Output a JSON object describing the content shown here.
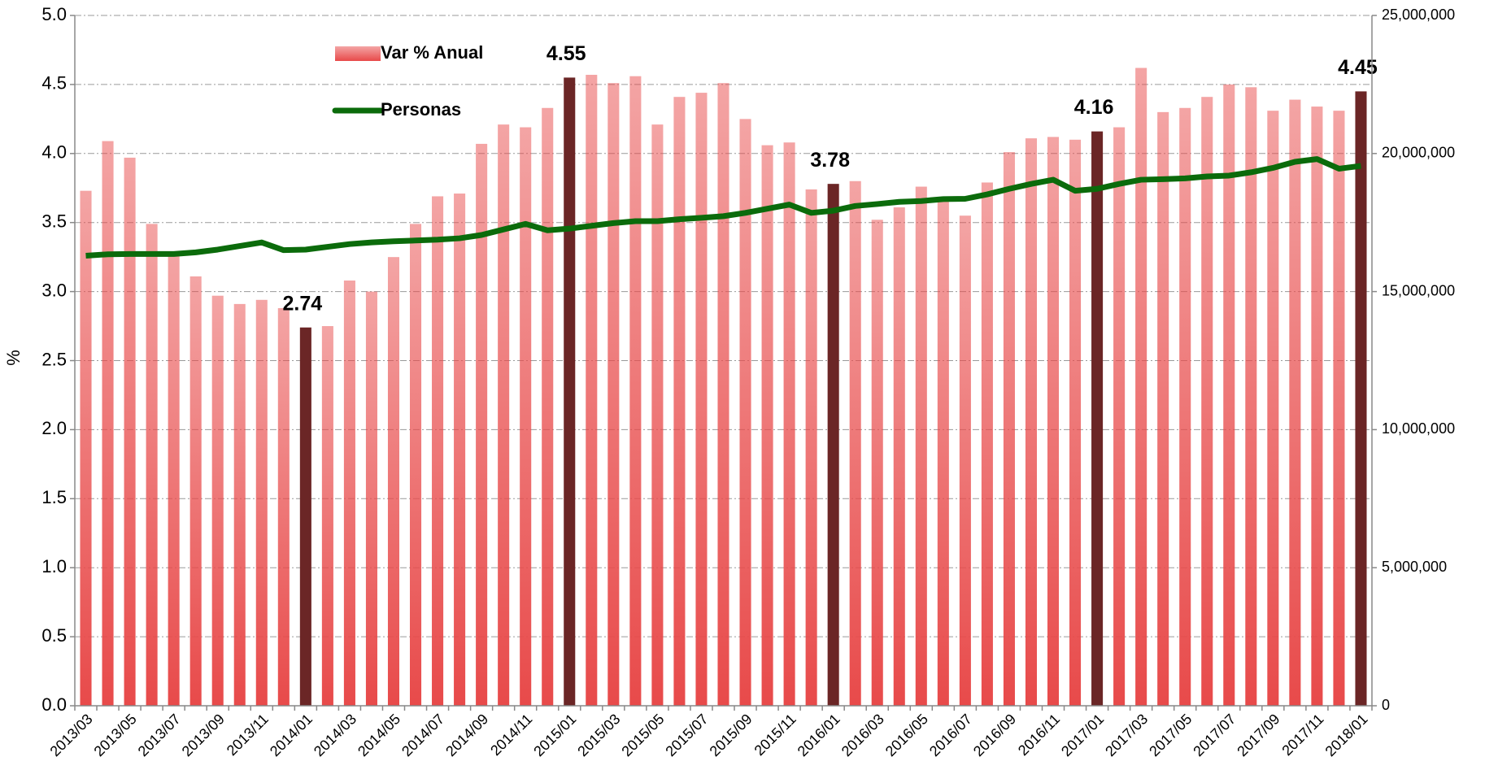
{
  "chart_data": {
    "type": "bar_line",
    "y_label": "%",
    "categories": [
      "2013/03",
      null,
      "2013/05",
      null,
      "2013/07",
      null,
      "2013/09",
      null,
      "2013/11",
      null,
      "2014/01",
      null,
      "2014/03",
      null,
      "2014/05",
      null,
      "2014/07",
      null,
      "2014/09",
      null,
      "2014/11",
      null,
      "2015/01",
      null,
      "2015/03",
      null,
      "2015/05",
      null,
      "2015/07",
      null,
      "2015/09",
      null,
      "2015/11",
      null,
      "2016/01",
      null,
      "2016/03",
      null,
      "2016/05",
      null,
      "2016/07",
      null,
      "2016/09",
      null,
      "2016/11",
      null,
      "2017/01",
      null,
      "2017/03",
      null,
      "2017/05",
      null,
      "2017/07",
      null,
      "2017/09",
      null,
      "2017/11",
      null,
      "2018/01"
    ],
    "series": [
      {
        "name": "Var % Anual",
        "color": "#e84a4a",
        "axis": "y",
        "values": [
          3.73,
          4.09,
          3.97,
          3.49,
          3.27,
          3.11,
          2.97,
          2.91,
          2.94,
          2.88,
          2.74,
          2.75,
          3.08,
          3.0,
          3.25,
          3.49,
          3.69,
          3.71,
          4.07,
          4.21,
          4.19,
          4.33,
          4.55,
          4.57,
          4.51,
          4.56,
          4.21,
          4.41,
          4.44,
          4.51,
          4.25,
          4.06,
          4.08,
          3.74,
          3.78,
          3.8,
          3.52,
          3.61,
          3.76,
          3.66,
          3.55,
          3.79,
          4.01,
          4.11,
          4.12,
          4.1,
          4.16,
          4.19,
          4.62,
          4.3,
          4.33,
          4.41,
          4.5,
          4.48,
          4.31,
          4.39,
          4.34,
          4.31,
          4.45
        ],
        "colors": [
          "#e84a4a",
          "#e84a4a",
          "#e84a4a",
          "#e84a4a",
          "#e84a4a",
          "#e84a4a",
          "#e84a4a",
          "#e84a4a",
          "#e84a4a",
          "#e84a4a",
          "#6b2626",
          "#e84a4a",
          "#e84a4a",
          "#e84a4a",
          "#e84a4a",
          "#e84a4a",
          "#e84a4a",
          "#e84a4a",
          "#e84a4a",
          "#e84a4a",
          "#e84a4a",
          "#e84a4a",
          "#6b2626",
          "#e84a4a",
          "#e84a4a",
          "#e84a4a",
          "#e84a4a",
          "#e84a4a",
          "#e84a4a",
          "#e84a4a",
          "#e84a4a",
          "#e84a4a",
          "#e84a4a",
          "#e84a4a",
          "#6b2626",
          "#e84a4a",
          "#e84a4a",
          "#e84a4a",
          "#e84a4a",
          "#e84a4a",
          "#e84a4a",
          "#e84a4a",
          "#e84a4a",
          "#e84a4a",
          "#e84a4a",
          "#e84a4a",
          "#6b2626",
          "#e84a4a",
          "#e84a4a",
          "#e84a4a",
          "#e84a4a",
          "#e84a4a",
          "#e84a4a",
          "#e84a4a",
          "#e84a4a",
          "#e84a4a",
          "#e84a4a",
          "#e84a4a",
          "#6b2626"
        ]
      },
      {
        "name": "Personas",
        "color": "#0b6b0b",
        "axis": "y2",
        "values": [
          16300000,
          16350000,
          16360000,
          16360000,
          16360000,
          16420000,
          16520000,
          16650000,
          16780000,
          16500000,
          16520000,
          16620000,
          16720000,
          16780000,
          16820000,
          16850000,
          16880000,
          16930000,
          17050000,
          17250000,
          17450000,
          17220000,
          17280000,
          17380000,
          17480000,
          17550000,
          17550000,
          17620000,
          17670000,
          17730000,
          17850000,
          18000000,
          18150000,
          17850000,
          17930000,
          18100000,
          18170000,
          18250000,
          18280000,
          18350000,
          18360000,
          18520000,
          18720000,
          18900000,
          19050000,
          18650000,
          18720000,
          18900000,
          19050000,
          19070000,
          19100000,
          19170000,
          19200000,
          19320000,
          19480000,
          19700000,
          19800000,
          19450000,
          19550000
        ]
      }
    ],
    "ylim": [
      0,
      5
    ],
    "yticks": [
      {
        "value": 0,
        "label": "0.0"
      },
      {
        "value": 0.5,
        "label": "0.5"
      },
      {
        "value": 1,
        "label": "1.0"
      },
      {
        "value": 1.5,
        "label": "1.5"
      },
      {
        "value": 2,
        "label": "2.0"
      },
      {
        "value": 2.5,
        "label": "2.5"
      },
      {
        "value": 3,
        "label": "3.0"
      },
      {
        "value": 3.5,
        "label": "3.5"
      },
      {
        "value": 4,
        "label": "4.0"
      },
      {
        "value": 4.5,
        "label": "4.5"
      },
      {
        "value": 5,
        "label": "5.0"
      }
    ],
    "y2lim": [
      0,
      25000000
    ],
    "y2ticks": [
      0,
      {
        "value": 5000000,
        "label": "5,000,000"
      },
      {
        "value": 10000000,
        "label": "10,000,000"
      },
      {
        "value": 15000000,
        "label": "15,000,000"
      },
      {
        "value": 20000000,
        "label": "20,000,000"
      },
      {
        "value": 25000000,
        "label": "25,000,000"
      }
    ],
    "grid": true
  }
}
